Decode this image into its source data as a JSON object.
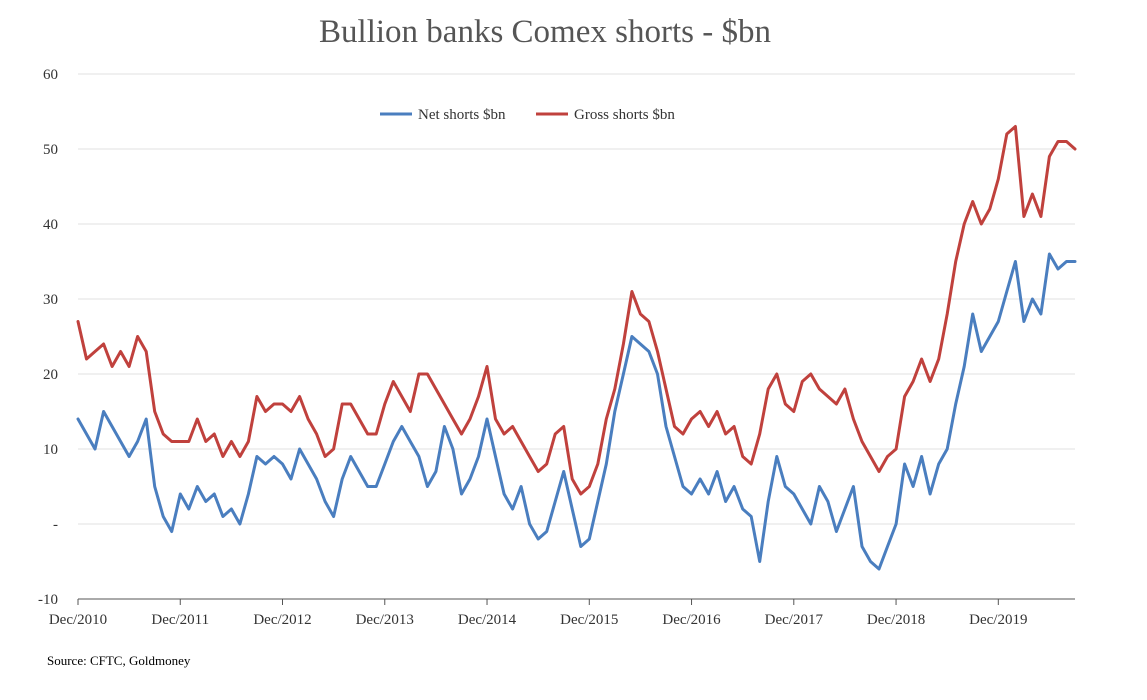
{
  "chart_data": {
    "type": "line",
    "title": "Bullion banks Comex shorts - $bn",
    "xlabel": "",
    "ylabel": "",
    "ylim": [
      -10,
      60
    ],
    "yticks": [
      {
        "value": 60,
        "label": "60"
      },
      {
        "value": 50,
        "label": "50"
      },
      {
        "value": 40,
        "label": "40"
      },
      {
        "value": 30,
        "label": "30"
      },
      {
        "value": 20,
        "label": "20"
      },
      {
        "value": 10,
        "label": "10"
      },
      {
        "value": 0,
        "label": "-"
      },
      {
        "value": -10,
        "label": "-10"
      }
    ],
    "xlim": [
      "2010-12",
      "2020-09"
    ],
    "xticks": [
      {
        "value": "2010-12",
        "label": "Dec/2010"
      },
      {
        "value": "2011-12",
        "label": "Dec/2011"
      },
      {
        "value": "2012-12",
        "label": "Dec/2012"
      },
      {
        "value": "2013-12",
        "label": "Dec/2013"
      },
      {
        "value": "2014-12",
        "label": "Dec/2014"
      },
      {
        "value": "2015-12",
        "label": "Dec/2015"
      },
      {
        "value": "2016-12",
        "label": "Dec/2016"
      },
      {
        "value": "2017-12",
        "label": "Dec/2017"
      },
      {
        "value": "2018-12",
        "label": "Dec/2018"
      },
      {
        "value": "2019-12",
        "label": "Dec/2019"
      }
    ],
    "grid": true,
    "legend": "top-center",
    "series": [
      {
        "name": "Net shorts $bn",
        "color": "#4a7ebf",
        "points": [
          [
            "2010-12",
            14
          ],
          [
            "2011-01",
            12
          ],
          [
            "2011-02",
            10
          ],
          [
            "2011-03",
            15
          ],
          [
            "2011-04",
            13
          ],
          [
            "2011-05",
            11
          ],
          [
            "2011-06",
            9
          ],
          [
            "2011-07",
            11
          ],
          [
            "2011-08",
            14
          ],
          [
            "2011-09",
            5
          ],
          [
            "2011-10",
            1
          ],
          [
            "2011-11",
            -1
          ],
          [
            "2011-12",
            4
          ],
          [
            "2012-01",
            2
          ],
          [
            "2012-02",
            5
          ],
          [
            "2012-03",
            3
          ],
          [
            "2012-04",
            4
          ],
          [
            "2012-05",
            1
          ],
          [
            "2012-06",
            2
          ],
          [
            "2012-07",
            0
          ],
          [
            "2012-08",
            4
          ],
          [
            "2012-09",
            9
          ],
          [
            "2012-10",
            8
          ],
          [
            "2012-11",
            9
          ],
          [
            "2012-12",
            8
          ],
          [
            "2013-01",
            6
          ],
          [
            "2013-02",
            10
          ],
          [
            "2013-03",
            8
          ],
          [
            "2013-04",
            6
          ],
          [
            "2013-05",
            3
          ],
          [
            "2013-06",
            1
          ],
          [
            "2013-07",
            6
          ],
          [
            "2013-08",
            9
          ],
          [
            "2013-09",
            7
          ],
          [
            "2013-10",
            5
          ],
          [
            "2013-11",
            5
          ],
          [
            "2013-12",
            8
          ],
          [
            "2014-01",
            11
          ],
          [
            "2014-02",
            13
          ],
          [
            "2014-03",
            11
          ],
          [
            "2014-04",
            9
          ],
          [
            "2014-05",
            5
          ],
          [
            "2014-06",
            7
          ],
          [
            "2014-07",
            13
          ],
          [
            "2014-08",
            10
          ],
          [
            "2014-09",
            4
          ],
          [
            "2014-10",
            6
          ],
          [
            "2014-11",
            9
          ],
          [
            "2014-12",
            14
          ],
          [
            "2015-01",
            9
          ],
          [
            "2015-02",
            4
          ],
          [
            "2015-03",
            2
          ],
          [
            "2015-04",
            5
          ],
          [
            "2015-05",
            0
          ],
          [
            "2015-06",
            -2
          ],
          [
            "2015-07",
            -1
          ],
          [
            "2015-08",
            3
          ],
          [
            "2015-09",
            7
          ],
          [
            "2015-10",
            2
          ],
          [
            "2015-11",
            -3
          ],
          [
            "2015-12",
            -2
          ],
          [
            "2016-01",
            3
          ],
          [
            "2016-02",
            8
          ],
          [
            "2016-03",
            15
          ],
          [
            "2016-04",
            20
          ],
          [
            "2016-05",
            25
          ],
          [
            "2016-06",
            24
          ],
          [
            "2016-07",
            23
          ],
          [
            "2016-08",
            20
          ],
          [
            "2016-09",
            13
          ],
          [
            "2016-10",
            9
          ],
          [
            "2016-11",
            5
          ],
          [
            "2016-12",
            4
          ],
          [
            "2017-01",
            6
          ],
          [
            "2017-02",
            4
          ],
          [
            "2017-03",
            7
          ],
          [
            "2017-04",
            3
          ],
          [
            "2017-05",
            5
          ],
          [
            "2017-06",
            2
          ],
          [
            "2017-07",
            1
          ],
          [
            "2017-08",
            -5
          ],
          [
            "2017-09",
            3
          ],
          [
            "2017-10",
            9
          ],
          [
            "2017-11",
            5
          ],
          [
            "2017-12",
            4
          ],
          [
            "2018-01",
            2
          ],
          [
            "2018-02",
            0
          ],
          [
            "2018-03",
            5
          ],
          [
            "2018-04",
            3
          ],
          [
            "2018-05",
            -1
          ],
          [
            "2018-06",
            2
          ],
          [
            "2018-07",
            5
          ],
          [
            "2018-08",
            -3
          ],
          [
            "2018-09",
            -5
          ],
          [
            "2018-10",
            -6
          ],
          [
            "2018-11",
            -3
          ],
          [
            "2018-12",
            0
          ],
          [
            "2019-01",
            8
          ],
          [
            "2019-02",
            5
          ],
          [
            "2019-03",
            9
          ],
          [
            "2019-04",
            4
          ],
          [
            "2019-05",
            8
          ],
          [
            "2019-06",
            10
          ],
          [
            "2019-07",
            16
          ],
          [
            "2019-08",
            21
          ],
          [
            "2019-09",
            28
          ],
          [
            "2019-10",
            23
          ],
          [
            "2019-11",
            25
          ],
          [
            "2019-12",
            27
          ],
          [
            "2020-01",
            31
          ],
          [
            "2020-02",
            35
          ],
          [
            "2020-03",
            27
          ],
          [
            "2020-04",
            30
          ],
          [
            "2020-05",
            28
          ],
          [
            "2020-06",
            36
          ],
          [
            "2020-07",
            34
          ],
          [
            "2020-08",
            35
          ],
          [
            "2020-09",
            35
          ]
        ]
      },
      {
        "name": "Gross shorts $bn",
        "color": "#c0413d",
        "points": [
          [
            "2010-12",
            27
          ],
          [
            "2011-01",
            22
          ],
          [
            "2011-02",
            23
          ],
          [
            "2011-03",
            24
          ],
          [
            "2011-04",
            21
          ],
          [
            "2011-05",
            23
          ],
          [
            "2011-06",
            21
          ],
          [
            "2011-07",
            25
          ],
          [
            "2011-08",
            23
          ],
          [
            "2011-09",
            15
          ],
          [
            "2011-10",
            12
          ],
          [
            "2011-11",
            11
          ],
          [
            "2011-12",
            11
          ],
          [
            "2012-01",
            11
          ],
          [
            "2012-02",
            14
          ],
          [
            "2012-03",
            11
          ],
          [
            "2012-04",
            12
          ],
          [
            "2012-05",
            9
          ],
          [
            "2012-06",
            11
          ],
          [
            "2012-07",
            9
          ],
          [
            "2012-08",
            11
          ],
          [
            "2012-09",
            17
          ],
          [
            "2012-10",
            15
          ],
          [
            "2012-11",
            16
          ],
          [
            "2012-12",
            16
          ],
          [
            "2013-01",
            15
          ],
          [
            "2013-02",
            17
          ],
          [
            "2013-03",
            14
          ],
          [
            "2013-04",
            12
          ],
          [
            "2013-05",
            9
          ],
          [
            "2013-06",
            10
          ],
          [
            "2013-07",
            16
          ],
          [
            "2013-08",
            16
          ],
          [
            "2013-09",
            14
          ],
          [
            "2013-10",
            12
          ],
          [
            "2013-11",
            12
          ],
          [
            "2013-12",
            16
          ],
          [
            "2014-01",
            19
          ],
          [
            "2014-02",
            17
          ],
          [
            "2014-03",
            15
          ],
          [
            "2014-04",
            20
          ],
          [
            "2014-05",
            20
          ],
          [
            "2014-06",
            18
          ],
          [
            "2014-07",
            16
          ],
          [
            "2014-08",
            14
          ],
          [
            "2014-09",
            12
          ],
          [
            "2014-10",
            14
          ],
          [
            "2014-11",
            17
          ],
          [
            "2014-12",
            21
          ],
          [
            "2015-01",
            14
          ],
          [
            "2015-02",
            12
          ],
          [
            "2015-03",
            13
          ],
          [
            "2015-04",
            11
          ],
          [
            "2015-05",
            9
          ],
          [
            "2015-06",
            7
          ],
          [
            "2015-07",
            8
          ],
          [
            "2015-08",
            12
          ],
          [
            "2015-09",
            13
          ],
          [
            "2015-10",
            6
          ],
          [
            "2015-11",
            4
          ],
          [
            "2015-12",
            5
          ],
          [
            "2016-01",
            8
          ],
          [
            "2016-02",
            14
          ],
          [
            "2016-03",
            18
          ],
          [
            "2016-04",
            24
          ],
          [
            "2016-05",
            31
          ],
          [
            "2016-06",
            28
          ],
          [
            "2016-07",
            27
          ],
          [
            "2016-08",
            23
          ],
          [
            "2016-09",
            18
          ],
          [
            "2016-10",
            13
          ],
          [
            "2016-11",
            12
          ],
          [
            "2016-12",
            14
          ],
          [
            "2017-01",
            15
          ],
          [
            "2017-02",
            13
          ],
          [
            "2017-03",
            15
          ],
          [
            "2017-04",
            12
          ],
          [
            "2017-05",
            13
          ],
          [
            "2017-06",
            9
          ],
          [
            "2017-07",
            8
          ],
          [
            "2017-08",
            12
          ],
          [
            "2017-09",
            18
          ],
          [
            "2017-10",
            20
          ],
          [
            "2017-11",
            16
          ],
          [
            "2017-12",
            15
          ],
          [
            "2018-01",
            19
          ],
          [
            "2018-02",
            20
          ],
          [
            "2018-03",
            18
          ],
          [
            "2018-04",
            17
          ],
          [
            "2018-05",
            16
          ],
          [
            "2018-06",
            18
          ],
          [
            "2018-07",
            14
          ],
          [
            "2018-08",
            11
          ],
          [
            "2018-09",
            9
          ],
          [
            "2018-10",
            7
          ],
          [
            "2018-11",
            9
          ],
          [
            "2018-12",
            10
          ],
          [
            "2019-01",
            17
          ],
          [
            "2019-02",
            19
          ],
          [
            "2019-03",
            22
          ],
          [
            "2019-04",
            19
          ],
          [
            "2019-05",
            22
          ],
          [
            "2019-06",
            28
          ],
          [
            "2019-07",
            35
          ],
          [
            "2019-08",
            40
          ],
          [
            "2019-09",
            43
          ],
          [
            "2019-10",
            40
          ],
          [
            "2019-11",
            42
          ],
          [
            "2019-12",
            46
          ],
          [
            "2020-01",
            52
          ],
          [
            "2020-02",
            53
          ],
          [
            "2020-03",
            41
          ],
          [
            "2020-04",
            44
          ],
          [
            "2020-05",
            41
          ],
          [
            "2020-06",
            49
          ],
          [
            "2020-07",
            51
          ],
          [
            "2020-08",
            51
          ],
          [
            "2020-09",
            50
          ]
        ]
      }
    ]
  },
  "source": "Source: CFTC, Goldmoney"
}
